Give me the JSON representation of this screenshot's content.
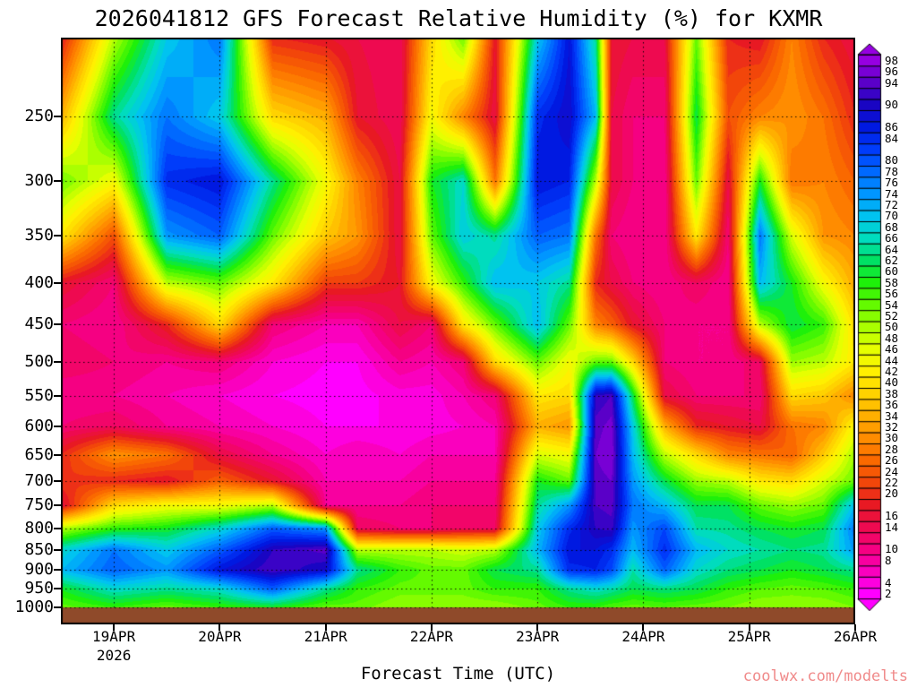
{
  "title": "2026041812 GFS Forecast Relative Humidity (%) for KXMR",
  "watermark": "coolwx.com/modelts",
  "colors": {
    "background": "#ffffff",
    "frame": "#000000",
    "ground": "#8f4a2a",
    "watermark": "#f08a8a",
    "text": "#000000"
  },
  "chart_data": {
    "type": "heatmap",
    "title": "2026041812 GFS Forecast Relative Humidity (%) for KXMR",
    "model": "GFS",
    "init_time": "2026041812",
    "station": "KXMR",
    "units": "%",
    "xlabel": "Forecast Time (UTC)",
    "year_label": "2026",
    "x_tick_labels": [
      "19APR",
      "20APR",
      "21APR",
      "22APR",
      "23APR",
      "24APR",
      "25APR",
      "26APR"
    ],
    "x_tick_values": [
      19,
      20,
      21,
      22,
      23,
      24,
      25,
      26
    ],
    "x_range_days": [
      18.5,
      26.0
    ],
    "y_axis": "pressure_hpa_log_scale",
    "y_tick_labels": [
      "250",
      "300",
      "350",
      "400",
      "450",
      "500",
      "550",
      "600",
      "650",
      "700",
      "750",
      "800",
      "850",
      "900",
      "950",
      "1000"
    ],
    "y_tick_values": [
      250,
      300,
      350,
      400,
      450,
      500,
      550,
      600,
      650,
      700,
      750,
      800,
      850,
      900,
      950,
      1000
    ],
    "p_range": [
      200,
      1050
    ],
    "ground_top_hpa": 1001,
    "contour_interval_pct": 2,
    "colorbar_min": 2,
    "colorbar_max": 98,
    "colorbar_tick_values": [
      98,
      96,
      94,
      90,
      86,
      84,
      80,
      78,
      76,
      74,
      72,
      70,
      68,
      66,
      64,
      62,
      60,
      58,
      56,
      54,
      52,
      50,
      48,
      46,
      44,
      42,
      40,
      38,
      36,
      34,
      32,
      30,
      28,
      26,
      24,
      22,
      20,
      16,
      14,
      10,
      8,
      4,
      2
    ],
    "palette_anchors": [
      [
        2,
        "#ff00ff"
      ],
      [
        6,
        "#fa00be"
      ],
      [
        10,
        "#f50082"
      ],
      [
        14,
        "#ee0a50"
      ],
      [
        18,
        "#e81923"
      ],
      [
        22,
        "#f2460a"
      ],
      [
        26,
        "#fa6900"
      ],
      [
        30,
        "#ff8c00"
      ],
      [
        34,
        "#ffaf00"
      ],
      [
        38,
        "#ffd200"
      ],
      [
        42,
        "#fff000"
      ],
      [
        46,
        "#e6ff00"
      ],
      [
        50,
        "#aaff00"
      ],
      [
        54,
        "#64fa00"
      ],
      [
        58,
        "#1ef00a"
      ],
      [
        62,
        "#00e164"
      ],
      [
        66,
        "#00dcbe"
      ],
      [
        70,
        "#00c3f0"
      ],
      [
        74,
        "#0096ff"
      ],
      [
        78,
        "#0069ff"
      ],
      [
        82,
        "#003cfa"
      ],
      [
        86,
        "#0019e1"
      ],
      [
        90,
        "#1905c3"
      ],
      [
        94,
        "#5a00c8"
      ],
      [
        98,
        "#9600e1"
      ]
    ],
    "times_days": [
      18.5,
      19.0,
      19.5,
      20.0,
      20.5,
      21.0,
      21.3,
      21.7,
      22.0,
      22.3,
      22.6,
      23.0,
      23.3,
      23.55,
      23.7,
      23.9,
      24.2,
      24.5,
      24.8,
      25.1,
      25.4,
      25.7,
      26.0
    ],
    "pressures_hpa": [
      200,
      250,
      300,
      350,
      400,
      450,
      500,
      550,
      600,
      650,
      700,
      750,
      800,
      850,
      900,
      950,
      1000
    ],
    "rh_grid": [
      [
        18,
        50,
        70,
        78,
        20,
        18,
        16,
        14,
        40,
        55,
        18,
        70,
        88,
        65,
        18,
        16,
        16,
        55,
        20,
        18,
        30,
        20,
        16
      ],
      [
        35,
        65,
        78,
        70,
        40,
        35,
        18,
        14,
        45,
        30,
        16,
        85,
        90,
        72,
        16,
        12,
        12,
        62,
        24,
        30,
        32,
        28,
        20
      ],
      [
        55,
        45,
        85,
        88,
        65,
        45,
        30,
        16,
        60,
        68,
        28,
        88,
        86,
        50,
        16,
        12,
        10,
        55,
        16,
        60,
        28,
        30,
        26
      ],
      [
        42,
        24,
        75,
        80,
        55,
        38,
        32,
        16,
        55,
        70,
        65,
        80,
        78,
        28,
        12,
        10,
        10,
        42,
        12,
        78,
        48,
        32,
        30
      ],
      [
        18,
        12,
        50,
        55,
        42,
        22,
        22,
        18,
        45,
        58,
        72,
        70,
        65,
        20,
        16,
        12,
        10,
        14,
        10,
        72,
        60,
        45,
        34
      ],
      [
        12,
        10,
        20,
        40,
        12,
        8,
        8,
        16,
        12,
        42,
        55,
        72,
        55,
        30,
        26,
        18,
        12,
        10,
        10,
        50,
        62,
        58,
        40
      ],
      [
        14,
        12,
        10,
        12,
        6,
        4,
        4,
        10,
        8,
        12,
        40,
        55,
        45,
        55,
        55,
        40,
        12,
        10,
        10,
        14,
        52,
        50,
        42
      ],
      [
        10,
        10,
        8,
        6,
        4,
        3,
        3,
        5,
        5,
        8,
        12,
        42,
        40,
        92,
        94,
        62,
        16,
        12,
        12,
        12,
        40,
        38,
        30
      ],
      [
        12,
        14,
        10,
        8,
        6,
        4,
        4,
        4,
        5,
        6,
        8,
        35,
        32,
        95,
        97,
        70,
        35,
        20,
        18,
        16,
        28,
        30,
        45
      ],
      [
        20,
        32,
        28,
        16,
        10,
        6,
        8,
        6,
        8,
        8,
        8,
        48,
        45,
        96,
        98,
        72,
        50,
        40,
        30,
        28,
        26,
        38,
        52
      ],
      [
        22,
        20,
        18,
        26,
        18,
        8,
        8,
        8,
        10,
        10,
        10,
        60,
        55,
        95,
        96,
        75,
        62,
        52,
        50,
        42,
        40,
        48,
        55
      ],
      [
        16,
        40,
        45,
        45,
        50,
        10,
        10,
        10,
        12,
        12,
        12,
        65,
        75,
        94,
        95,
        78,
        72,
        62,
        62,
        55,
        52,
        55,
        72
      ],
      [
        50,
        58,
        60,
        68,
        80,
        75,
        14,
        12,
        12,
        14,
        14,
        70,
        85,
        92,
        93,
        75,
        82,
        66,
        65,
        62,
        60,
        62,
        78
      ],
      [
        68,
        78,
        70,
        80,
        92,
        95,
        50,
        50,
        50,
        48,
        50,
        72,
        88,
        88,
        85,
        72,
        85,
        72,
        68,
        66,
        64,
        65,
        75
      ],
      [
        72,
        80,
        75,
        88,
        94,
        90,
        65,
        58,
        55,
        55,
        62,
        65,
        85,
        86,
        82,
        66,
        80,
        68,
        64,
        62,
        60,
        62,
        65
      ],
      [
        60,
        68,
        65,
        68,
        80,
        65,
        58,
        55,
        55,
        55,
        58,
        58,
        65,
        68,
        66,
        62,
        64,
        62,
        58,
        56,
        55,
        56,
        58
      ],
      [
        55,
        58,
        55,
        58,
        60,
        55,
        55,
        52,
        52,
        52,
        52,
        55,
        58,
        58,
        56,
        55,
        56,
        55,
        54,
        52,
        52,
        52,
        54
      ]
    ]
  }
}
